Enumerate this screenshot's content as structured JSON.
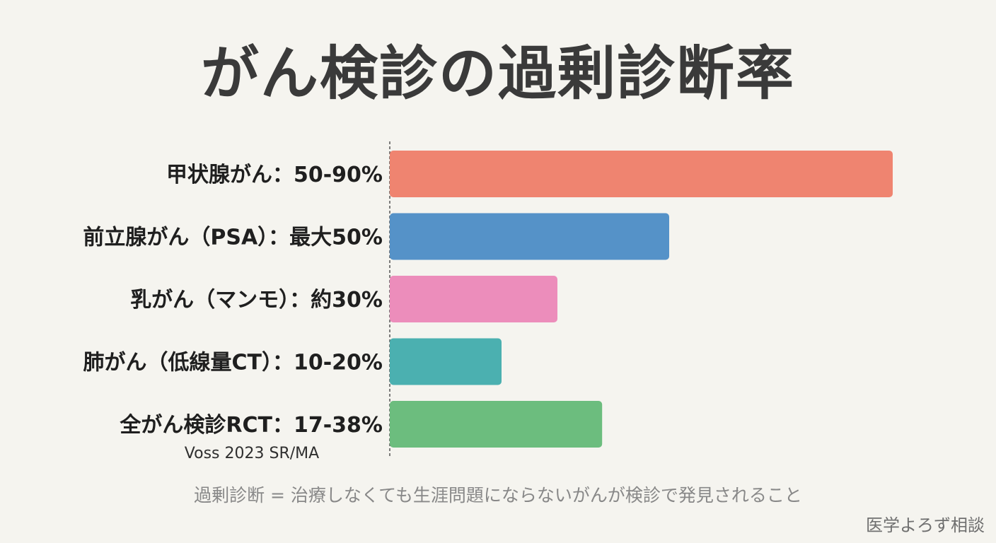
{
  "title": "がん検診の過剰診断率",
  "chart_data": {
    "type": "bar",
    "orientation": "horizontal",
    "title": "がん検診の過剰診断率",
    "categories": [
      "甲状腺がん：50-90%",
      "前立腺がん（PSA）：最大50%",
      "乳がん（マンモ）：約30%",
      "肺がん（低線量CT）：10-20%",
      "全がん検診RCT：17-38%"
    ],
    "values": [
      90,
      50,
      30,
      20,
      38
    ],
    "colors": [
      "#ef8470",
      "#5592c8",
      "#ec8dbb",
      "#4bb0b0",
      "#6cbd7e"
    ],
    "xlim": [
      0,
      100
    ],
    "axis": "dashed-baseline",
    "grid": false,
    "annotations": [
      {
        "category_index": 4,
        "text": "Voss 2023 SR/MA"
      }
    ]
  },
  "footnote": "過剰診断 = 治療しなくても生涯問題にならないがんが検診で発見されること",
  "credit": "医学よろず相談"
}
